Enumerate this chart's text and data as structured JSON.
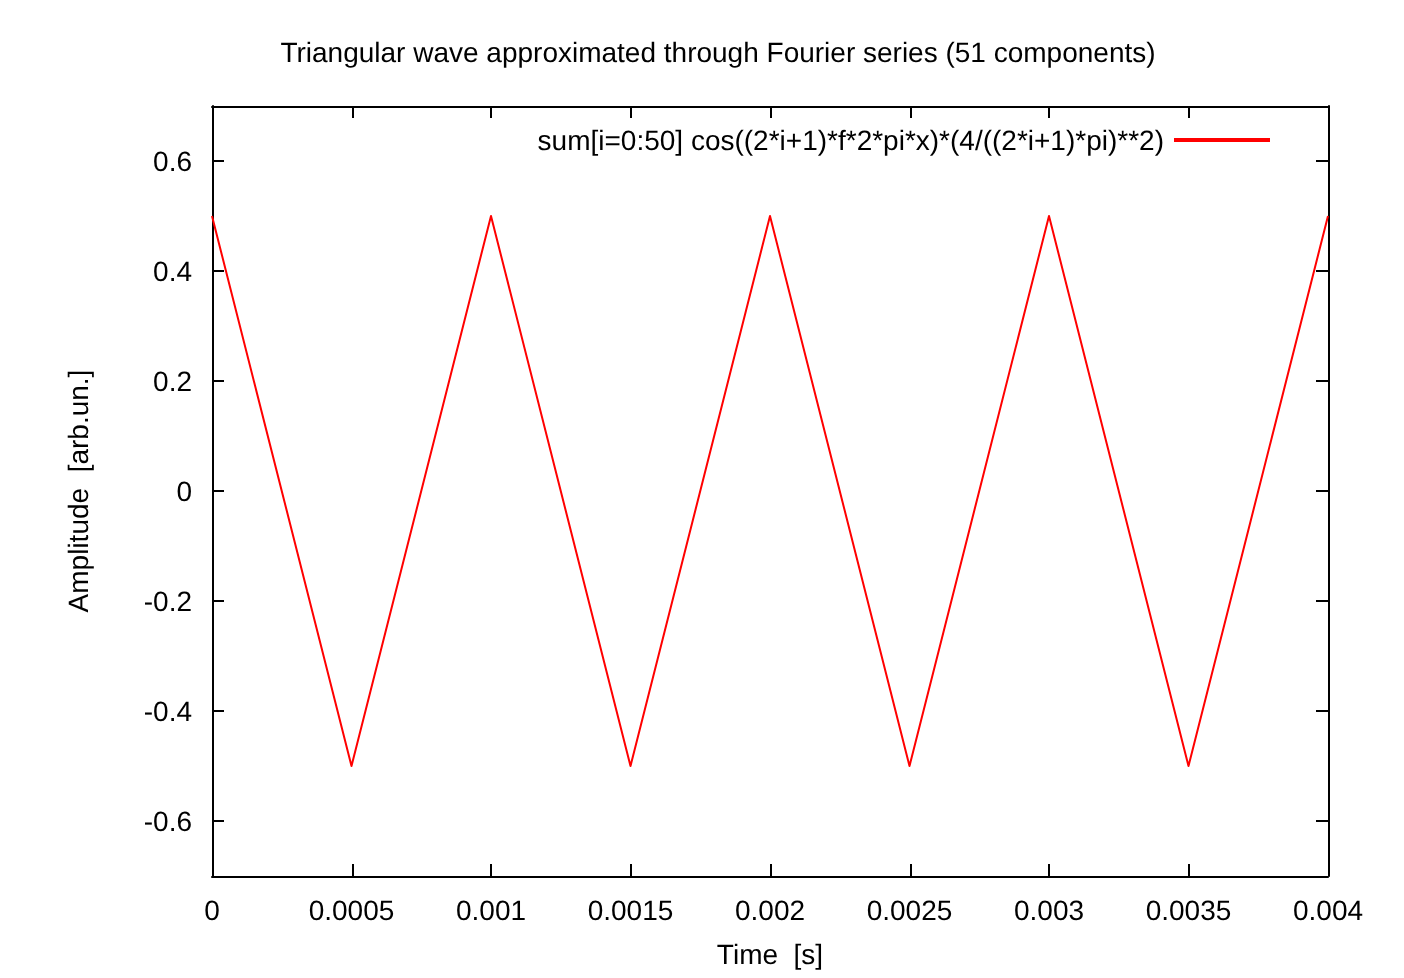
{
  "chart_data": {
    "type": "line",
    "title": "Triangular wave approximated through Fourier series (51 components)",
    "xlabel": "Time  [s]",
    "ylabel": "Amplitude  [arb.un.]",
    "x": [
      0,
      0.0005,
      0.001,
      0.0015,
      0.002,
      0.0025,
      0.003,
      0.0035,
      0.004
    ],
    "series": [
      {
        "name": "sum[i=0:50] cos((2*i+1)*f*2*pi*x)*(4/((2*i+1)*pi)**2)",
        "color": "#ff0000",
        "values": [
          0.5,
          -0.5,
          0.5,
          -0.5,
          0.5,
          -0.5,
          0.5,
          -0.5,
          0.5
        ]
      }
    ],
    "xlim": [
      0,
      0.004
    ],
    "xticks": [
      0,
      0.0005,
      0.001,
      0.0015,
      0.002,
      0.0025,
      0.003,
      0.0035,
      0.004
    ],
    "ylim": [
      -0.7,
      0.7
    ],
    "yticks": [
      -0.6,
      -0.4,
      -0.2,
      0,
      0.2,
      0.4,
      0.6
    ],
    "grid": false,
    "legend": "top right",
    "marker": "none",
    "line_style": "solid"
  }
}
